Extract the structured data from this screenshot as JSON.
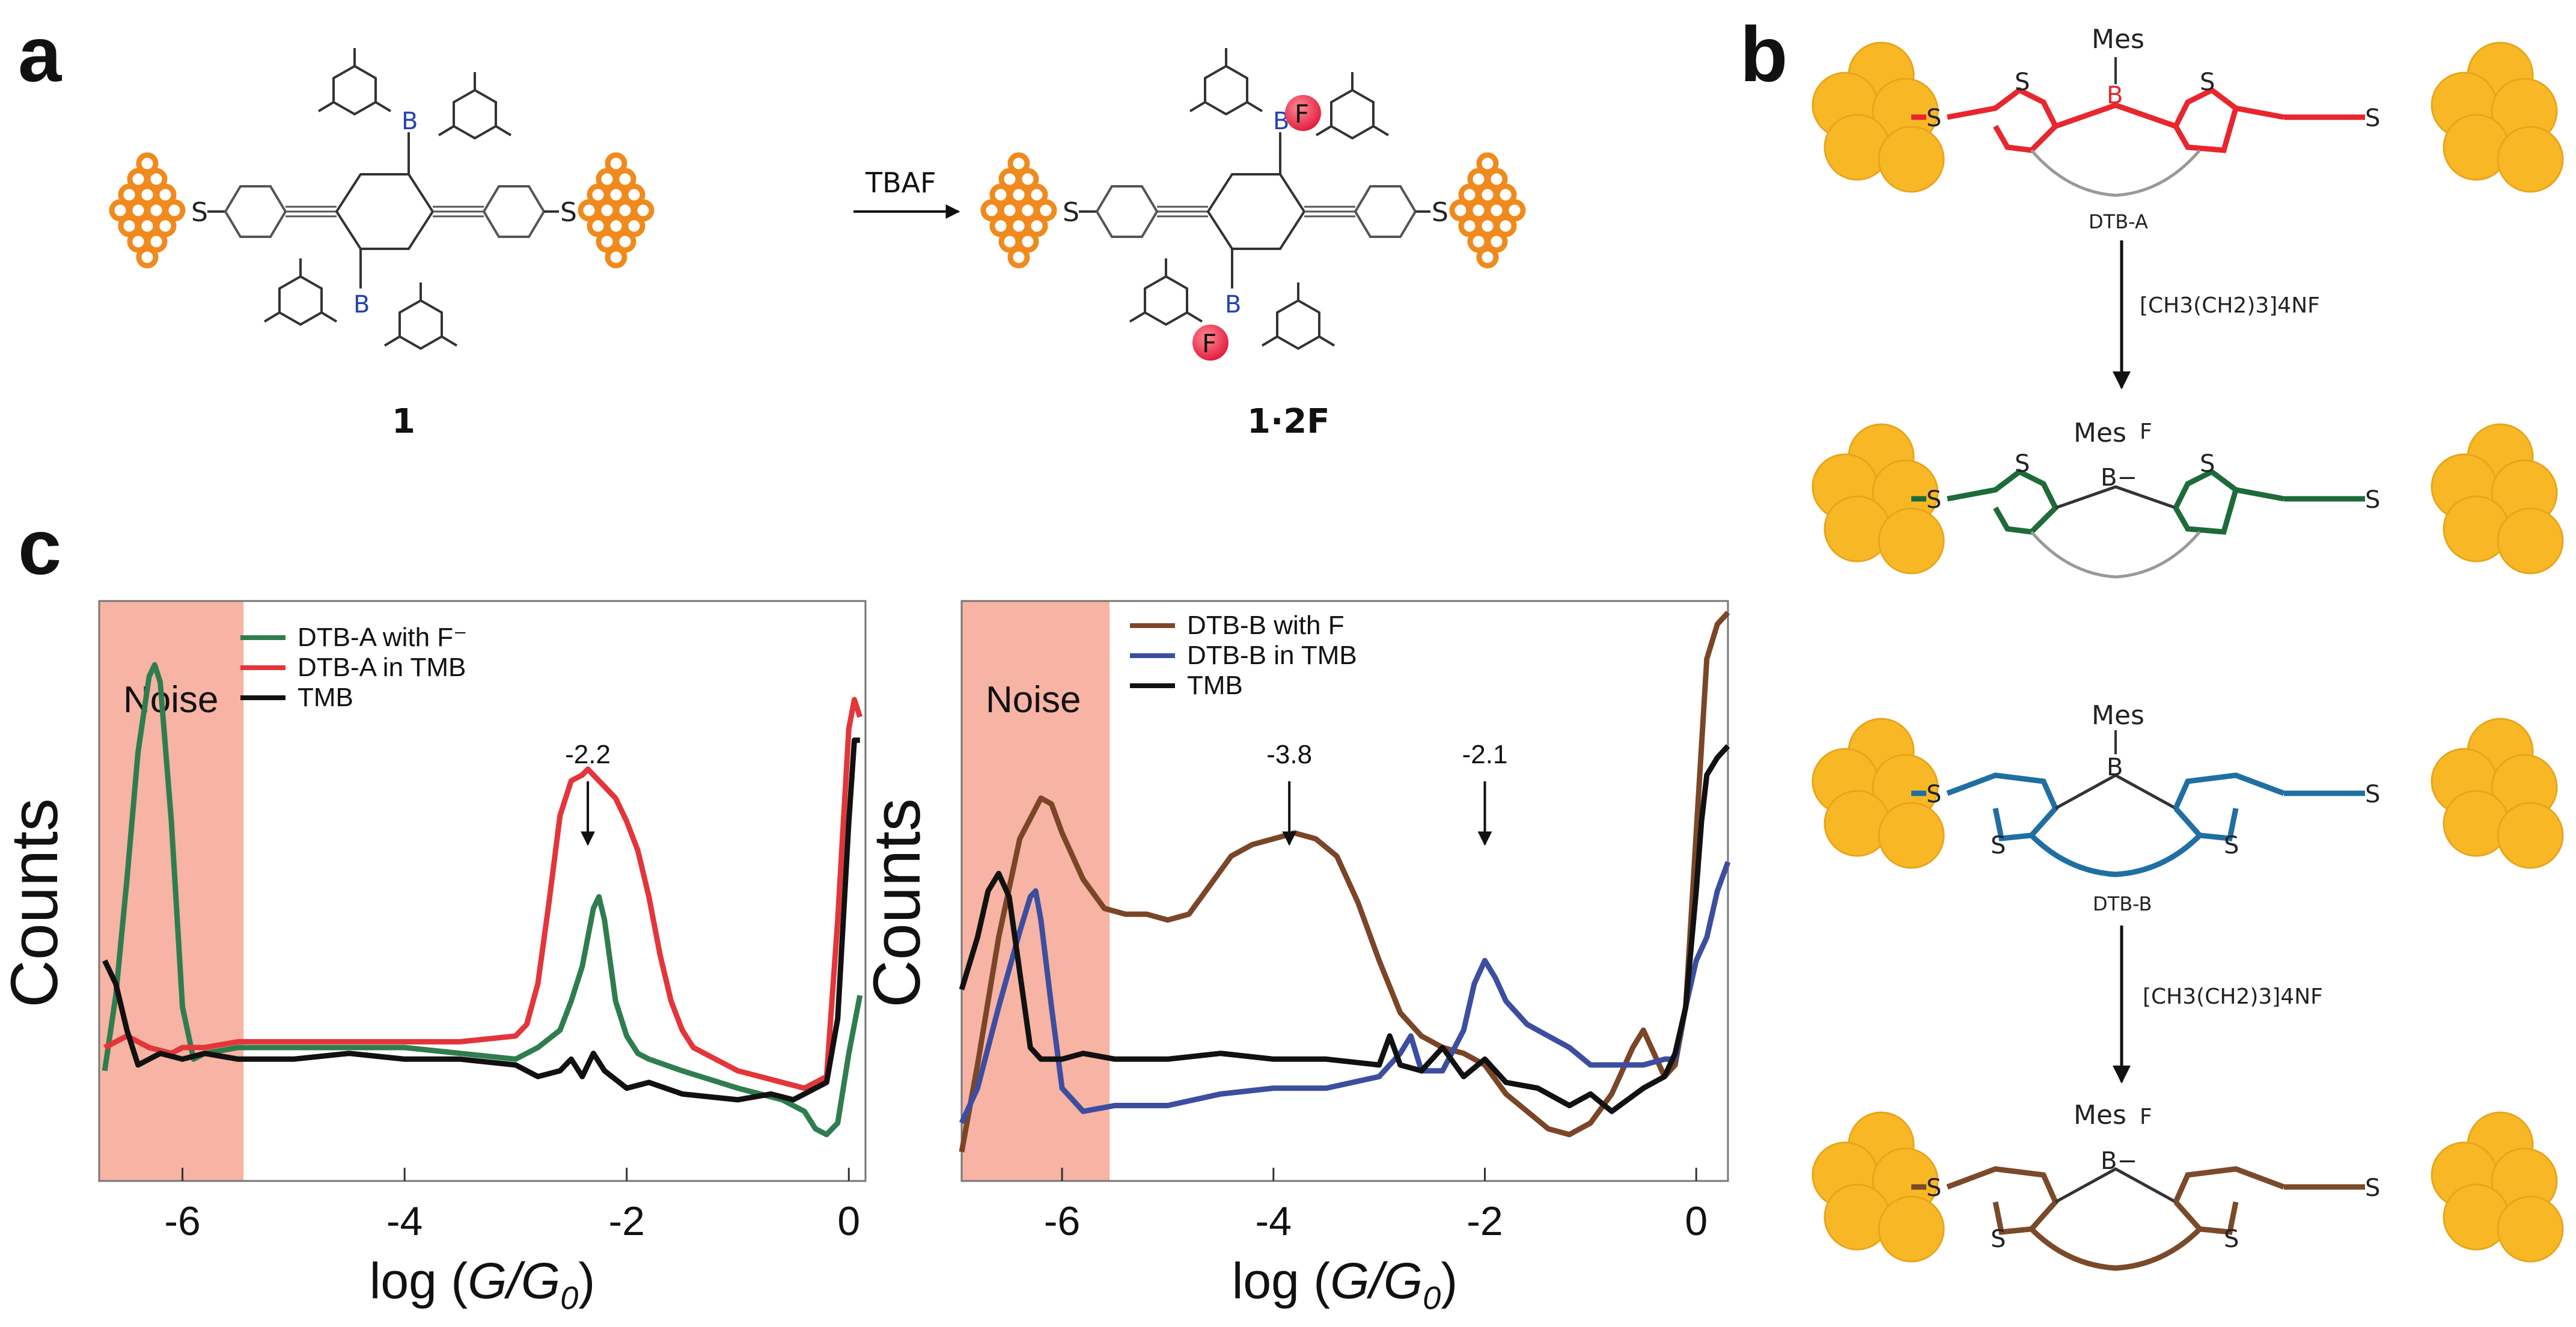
{
  "panels": {
    "a": "a",
    "b": "b",
    "c": "c"
  },
  "panel_a": {
    "reagent": "TBAF",
    "compound_1": "1",
    "compound_2": "1·2F",
    "atoms": {
      "S": "S",
      "B": "B",
      "F": "F"
    }
  },
  "panel_b": {
    "reagent_1": "[CH3(CH2)3]4NF",
    "reagent_2": "[CH3(CH2)3]4NF",
    "label_dtb_a": "DTB-A",
    "label_dtb_b": "DTB-B",
    "atoms": {
      "S": "S",
      "B": "B",
      "Bminus": "B−",
      "Mes": "Mes",
      "F": "F"
    },
    "colors": {
      "dtb_a": "#e8262d",
      "dtb_a_f": "#1e6b3a",
      "dtb_b": "#1f6fa3",
      "dtb_b_f": "#7a4a2a",
      "gold": "#f7b928"
    }
  },
  "chart_data": [
    {
      "type": "line",
      "noise_label": "Noise",
      "ylabel": "Counts",
      "xlabel": "log (G/G₀)",
      "xlabel_parts": {
        "prefix": "log (",
        "var": "G/G",
        "sub": "0",
        "suffix": ")"
      },
      "xlim": [
        -6.75,
        0.15
      ],
      "xticks": [
        -6,
        -4,
        -2,
        0
      ],
      "xtick_labels": [
        "-6",
        "-4",
        "-2",
        "0"
      ],
      "noise_region": [
        -6.75,
        -5.45
      ],
      "annotations": [
        {
          "x": -2.35,
          "text": "-2.2"
        }
      ],
      "series": [
        {
          "name": "DTB-A with F⁻",
          "color": "#2f7d4f",
          "x": [
            -6.7,
            -6.6,
            -6.5,
            -6.4,
            -6.3,
            -6.25,
            -6.2,
            -6.1,
            -6.0,
            -5.9,
            -5.8,
            -5.5,
            -5,
            -4.5,
            -4,
            -3.5,
            -3,
            -2.8,
            -2.6,
            -2.5,
            -2.4,
            -2.3,
            -2.25,
            -2.2,
            -2.1,
            -2.0,
            -1.9,
            -1.8,
            -1.5,
            -1,
            -0.6,
            -0.4,
            -0.3,
            -0.2,
            -0.1,
            0.0,
            0.1
          ],
          "y": [
            0.19,
            0.32,
            0.52,
            0.74,
            0.87,
            0.89,
            0.86,
            0.62,
            0.3,
            0.21,
            0.22,
            0.23,
            0.23,
            0.23,
            0.23,
            0.22,
            0.21,
            0.23,
            0.26,
            0.31,
            0.37,
            0.47,
            0.49,
            0.45,
            0.31,
            0.25,
            0.22,
            0.21,
            0.19,
            0.16,
            0.14,
            0.12,
            0.09,
            0.08,
            0.1,
            0.22,
            0.32
          ]
        },
        {
          "name": "DTB-A in TMB",
          "color": "#e3353a",
          "x": [
            -6.7,
            -6.6,
            -6.5,
            -6.3,
            -6.1,
            -6.0,
            -5.8,
            -5.5,
            -5,
            -4.5,
            -4,
            -3.5,
            -3,
            -2.9,
            -2.8,
            -2.7,
            -2.6,
            -2.5,
            -2.4,
            -2.35,
            -2.2,
            -2.1,
            -2.0,
            -1.9,
            -1.8,
            -1.7,
            -1.6,
            -1.5,
            -1.4,
            -1.2,
            -1,
            -0.8,
            -0.6,
            -0.4,
            -0.2,
            -0.1,
            0.0,
            0.05,
            0.1
          ],
          "y": [
            0.23,
            0.24,
            0.25,
            0.23,
            0.22,
            0.23,
            0.23,
            0.24,
            0.24,
            0.24,
            0.24,
            0.24,
            0.25,
            0.27,
            0.34,
            0.48,
            0.63,
            0.69,
            0.7,
            0.71,
            0.68,
            0.66,
            0.62,
            0.57,
            0.49,
            0.39,
            0.31,
            0.26,
            0.23,
            0.21,
            0.19,
            0.18,
            0.17,
            0.16,
            0.18,
            0.45,
            0.78,
            0.83,
            0.8
          ]
        },
        {
          "name": "TMB",
          "color": "#111111",
          "x": [
            -6.7,
            -6.6,
            -6.5,
            -6.4,
            -6.3,
            -6.2,
            -6.0,
            -5.8,
            -5.5,
            -5,
            -4.5,
            -4,
            -3.5,
            -3,
            -2.8,
            -2.6,
            -2.5,
            -2.4,
            -2.3,
            -2.2,
            -2.0,
            -1.8,
            -1.5,
            -1,
            -0.7,
            -0.5,
            -0.4,
            -0.3,
            -0.2,
            -0.1,
            0.0,
            0.05,
            0.1
          ],
          "y": [
            0.38,
            0.34,
            0.26,
            0.2,
            0.21,
            0.22,
            0.21,
            0.22,
            0.21,
            0.21,
            0.22,
            0.21,
            0.21,
            0.2,
            0.18,
            0.19,
            0.21,
            0.18,
            0.22,
            0.19,
            0.16,
            0.17,
            0.15,
            0.14,
            0.15,
            0.14,
            0.15,
            0.16,
            0.17,
            0.28,
            0.62,
            0.76,
            0.76
          ]
        }
      ]
    },
    {
      "type": "line",
      "noise_label": "Noise",
      "ylabel": "Counts",
      "xlabel": "log (G/G₀)",
      "xlabel_parts": {
        "prefix": "log (",
        "var": "G/G",
        "sub": "0",
        "suffix": ")"
      },
      "xlim": [
        -6.95,
        0.3
      ],
      "xticks": [
        -6,
        -4,
        -2,
        0
      ],
      "xtick_labels": [
        "-6",
        "-4",
        "-2",
        "0"
      ],
      "noise_region": [
        -6.95,
        -5.55
      ],
      "annotations": [
        {
          "x": -3.85,
          "text": "-3.8"
        },
        {
          "x": -2.0,
          "text": "-2.1"
        }
      ],
      "series": [
        {
          "name": "DTB-B with F",
          "color": "#7b4527",
          "x": [
            -6.95,
            -6.8,
            -6.6,
            -6.4,
            -6.2,
            -6.1,
            -6.0,
            -5.8,
            -5.6,
            -5.4,
            -5.2,
            -5.0,
            -4.8,
            -4.6,
            -4.4,
            -4.2,
            -4.0,
            -3.8,
            -3.6,
            -3.4,
            -3.2,
            -3.0,
            -2.8,
            -2.6,
            -2.4,
            -2.2,
            -2.0,
            -1.8,
            -1.6,
            -1.4,
            -1.2,
            -1.0,
            -0.8,
            -0.6,
            -0.5,
            -0.4,
            -0.3,
            -0.2,
            -0.1,
            0.0,
            0.1,
            0.2,
            0.3
          ],
          "y": [
            0.05,
            0.2,
            0.42,
            0.59,
            0.66,
            0.65,
            0.6,
            0.52,
            0.47,
            0.46,
            0.46,
            0.45,
            0.46,
            0.51,
            0.56,
            0.58,
            0.59,
            0.6,
            0.59,
            0.56,
            0.48,
            0.38,
            0.29,
            0.25,
            0.23,
            0.22,
            0.2,
            0.15,
            0.12,
            0.09,
            0.08,
            0.1,
            0.15,
            0.23,
            0.26,
            0.22,
            0.18,
            0.2,
            0.3,
            0.6,
            0.9,
            0.96,
            0.98
          ]
        },
        {
          "name": "DTB-B in TMB",
          "color": "#3b4ea0",
          "x": [
            -6.95,
            -6.8,
            -6.6,
            -6.4,
            -6.3,
            -6.25,
            -6.2,
            -6.1,
            -6.0,
            -5.8,
            -5.5,
            -5,
            -4.5,
            -4,
            -3.5,
            -3,
            -2.8,
            -2.7,
            -2.6,
            -2.4,
            -2.2,
            -2.1,
            -2.0,
            -1.9,
            -1.8,
            -1.6,
            -1.4,
            -1.2,
            -1.0,
            -0.8,
            -0.5,
            -0.3,
            -0.2,
            -0.1,
            0.0,
            0.1,
            0.2,
            0.3
          ],
          "y": [
            0.1,
            0.16,
            0.3,
            0.43,
            0.49,
            0.5,
            0.45,
            0.3,
            0.16,
            0.12,
            0.13,
            0.13,
            0.15,
            0.16,
            0.16,
            0.18,
            0.22,
            0.25,
            0.19,
            0.19,
            0.26,
            0.34,
            0.38,
            0.35,
            0.31,
            0.27,
            0.25,
            0.23,
            0.2,
            0.2,
            0.2,
            0.21,
            0.21,
            0.3,
            0.38,
            0.42,
            0.5,
            0.55
          ]
        },
        {
          "name": "TMB",
          "color": "#111111",
          "x": [
            -6.95,
            -6.9,
            -6.8,
            -6.7,
            -6.6,
            -6.5,
            -6.4,
            -6.3,
            -6.2,
            -6.0,
            -5.8,
            -5.5,
            -5,
            -4.5,
            -4,
            -3.5,
            -3,
            -2.9,
            -2.8,
            -2.6,
            -2.4,
            -2.2,
            -2.0,
            -1.8,
            -1.5,
            -1.2,
            -1.0,
            -0.8,
            -0.5,
            -0.3,
            -0.2,
            -0.1,
            0.0,
            0.05,
            0.1,
            0.2,
            0.3
          ],
          "y": [
            0.33,
            0.36,
            0.42,
            0.5,
            0.53,
            0.49,
            0.36,
            0.23,
            0.21,
            0.21,
            0.22,
            0.21,
            0.21,
            0.22,
            0.21,
            0.21,
            0.2,
            0.25,
            0.2,
            0.19,
            0.23,
            0.18,
            0.21,
            0.17,
            0.16,
            0.13,
            0.15,
            0.12,
            0.16,
            0.18,
            0.22,
            0.3,
            0.5,
            0.62,
            0.7,
            0.73,
            0.75
          ]
        }
      ]
    }
  ]
}
